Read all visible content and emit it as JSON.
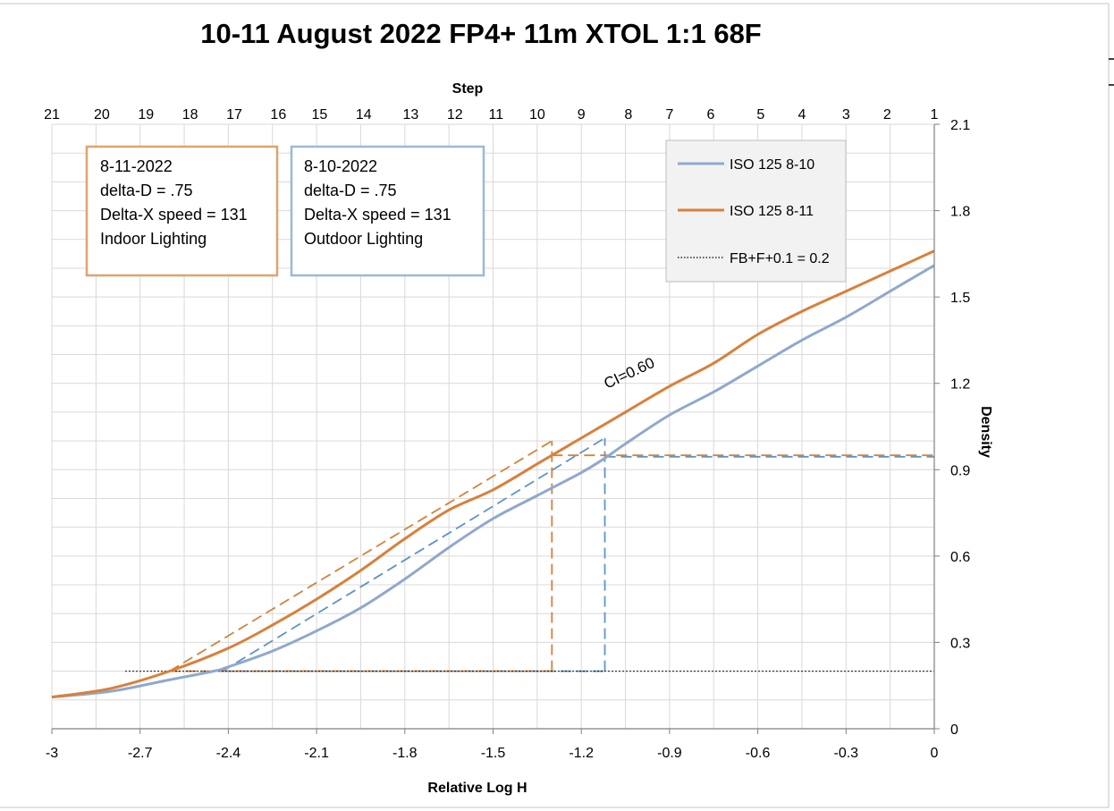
{
  "chart_data": {
    "type": "line",
    "title": "10-11 August 2022   FP4+ 11m XTOL 1:1  68F",
    "xlabel": "Relative Log H",
    "ylabel": "Density",
    "x2label": "Step",
    "xlim": [
      -3,
      0
    ],
    "ylim": [
      0,
      2.1
    ],
    "x_ticks": [
      "-3",
      "-2.7",
      "-2.4",
      "-2.1",
      "-1.8",
      "-1.5",
      "-1.2",
      "-0.9",
      "-0.6",
      "-0.3",
      "0"
    ],
    "x_tick_values": [
      -3,
      -2.7,
      -2.4,
      -2.1,
      -1.8,
      -1.5,
      -1.2,
      -0.9,
      -0.6,
      -0.3,
      0
    ],
    "y_ticks": [
      "0",
      "0.3",
      "0.6",
      "0.9",
      "1.2",
      "1.5",
      "1.8",
      "2.1"
    ],
    "y_tick_values": [
      0,
      0.3,
      0.6,
      0.9,
      1.2,
      1.5,
      1.8,
      2.1
    ],
    "step_ticks": [
      "21",
      "20",
      "19",
      "18",
      "17",
      "16",
      "15",
      "14",
      "13",
      "12",
      "11",
      "10",
      "9",
      "8",
      "7",
      "6",
      "5",
      "4",
      "3",
      "2",
      "1"
    ],
    "step_tick_values": [
      -3.0,
      -2.83,
      -2.68,
      -2.53,
      -2.38,
      -2.23,
      -2.09,
      -1.94,
      -1.78,
      -1.63,
      -1.49,
      -1.35,
      -1.2,
      -1.04,
      -0.9,
      -0.76,
      -0.59,
      -0.45,
      -0.3,
      -0.16,
      0.0
    ],
    "grid": true,
    "legend_position": "top-right",
    "colors": {
      "blue": "#8FA8CF",
      "orange": "#D9803A",
      "blue_dash": "#5D93C9",
      "orange_dash": "#D5823A",
      "box_orange": "#E0A36C",
      "box_blue": "#9DB8D7"
    },
    "series": [
      {
        "name": "ISO 125  8-10",
        "color": "#8FA8CF",
        "x": [
          -3.0,
          -2.8,
          -2.6,
          -2.45,
          -2.4,
          -2.25,
          -2.1,
          -1.95,
          -1.8,
          -1.65,
          -1.5,
          -1.35,
          -1.2,
          -1.12,
          -1.05,
          -0.9,
          -0.75,
          -0.6,
          -0.45,
          -0.3,
          -0.15,
          0.0
        ],
        "y": [
          0.11,
          0.13,
          0.17,
          0.2,
          0.215,
          0.27,
          0.34,
          0.42,
          0.52,
          0.63,
          0.73,
          0.81,
          0.89,
          0.94,
          0.99,
          1.09,
          1.17,
          1.26,
          1.35,
          1.43,
          1.52,
          1.61
        ]
      },
      {
        "name": "ISO 125  8-11",
        "color": "#D9803A",
        "x": [
          -3.0,
          -2.8,
          -2.6,
          -2.4,
          -2.25,
          -2.1,
          -1.95,
          -1.8,
          -1.65,
          -1.5,
          -1.35,
          -1.3,
          -1.2,
          -1.05,
          -0.9,
          -0.75,
          -0.6,
          -0.45,
          -0.3,
          -0.15,
          0.0
        ],
        "y": [
          0.11,
          0.14,
          0.2,
          0.28,
          0.36,
          0.45,
          0.55,
          0.66,
          0.76,
          0.83,
          0.92,
          0.95,
          1.01,
          1.1,
          1.19,
          1.27,
          1.37,
          1.45,
          1.52,
          1.59,
          1.66
        ]
      },
      {
        "name": "FB+F+0.1 = 0.2",
        "color": "#000000",
        "style": "dotted",
        "x": [
          -2.75,
          0.0
        ],
        "y": [
          0.2,
          0.2
        ]
      }
    ],
    "annotations": {
      "ci_label": "CI=0.60",
      "ci_label_at": {
        "x": -1.03,
        "y": 1.22
      },
      "box_orange": [
        "8-11-2022",
        "delta-D = .75",
        "Delta-X speed = 131",
        "Indoor Lighting"
      ],
      "box_blue": [
        "8-10-2022",
        "delta-D = .75",
        "Delta-X speed = 131",
        "Outdoor Lighting"
      ],
      "construction_orange": {
        "slope_line": {
          "x": [
            -2.6,
            -1.3
          ],
          "y": [
            0.2,
            1.0
          ]
        },
        "vertical": {
          "x": -1.3,
          "y": [
            0.2,
            1.0
          ]
        },
        "horizontal": {
          "x": [
            -1.3,
            0.0
          ],
          "y": 0.95
        },
        "base": {
          "x": [
            -2.6,
            -1.3
          ],
          "y": 0.2
        }
      },
      "construction_blue": {
        "slope_line": {
          "x": [
            -2.42,
            -1.12
          ],
          "y": [
            0.2,
            1.01
          ]
        },
        "vertical": {
          "x": -1.12,
          "y": [
            0.2,
            1.01
          ]
        },
        "horizontal": {
          "x": [
            -1.12,
            0.0
          ],
          "y": 0.945
        },
        "base": {
          "x": [
            -2.42,
            -1.12
          ],
          "y": 0.2
        }
      }
    }
  }
}
